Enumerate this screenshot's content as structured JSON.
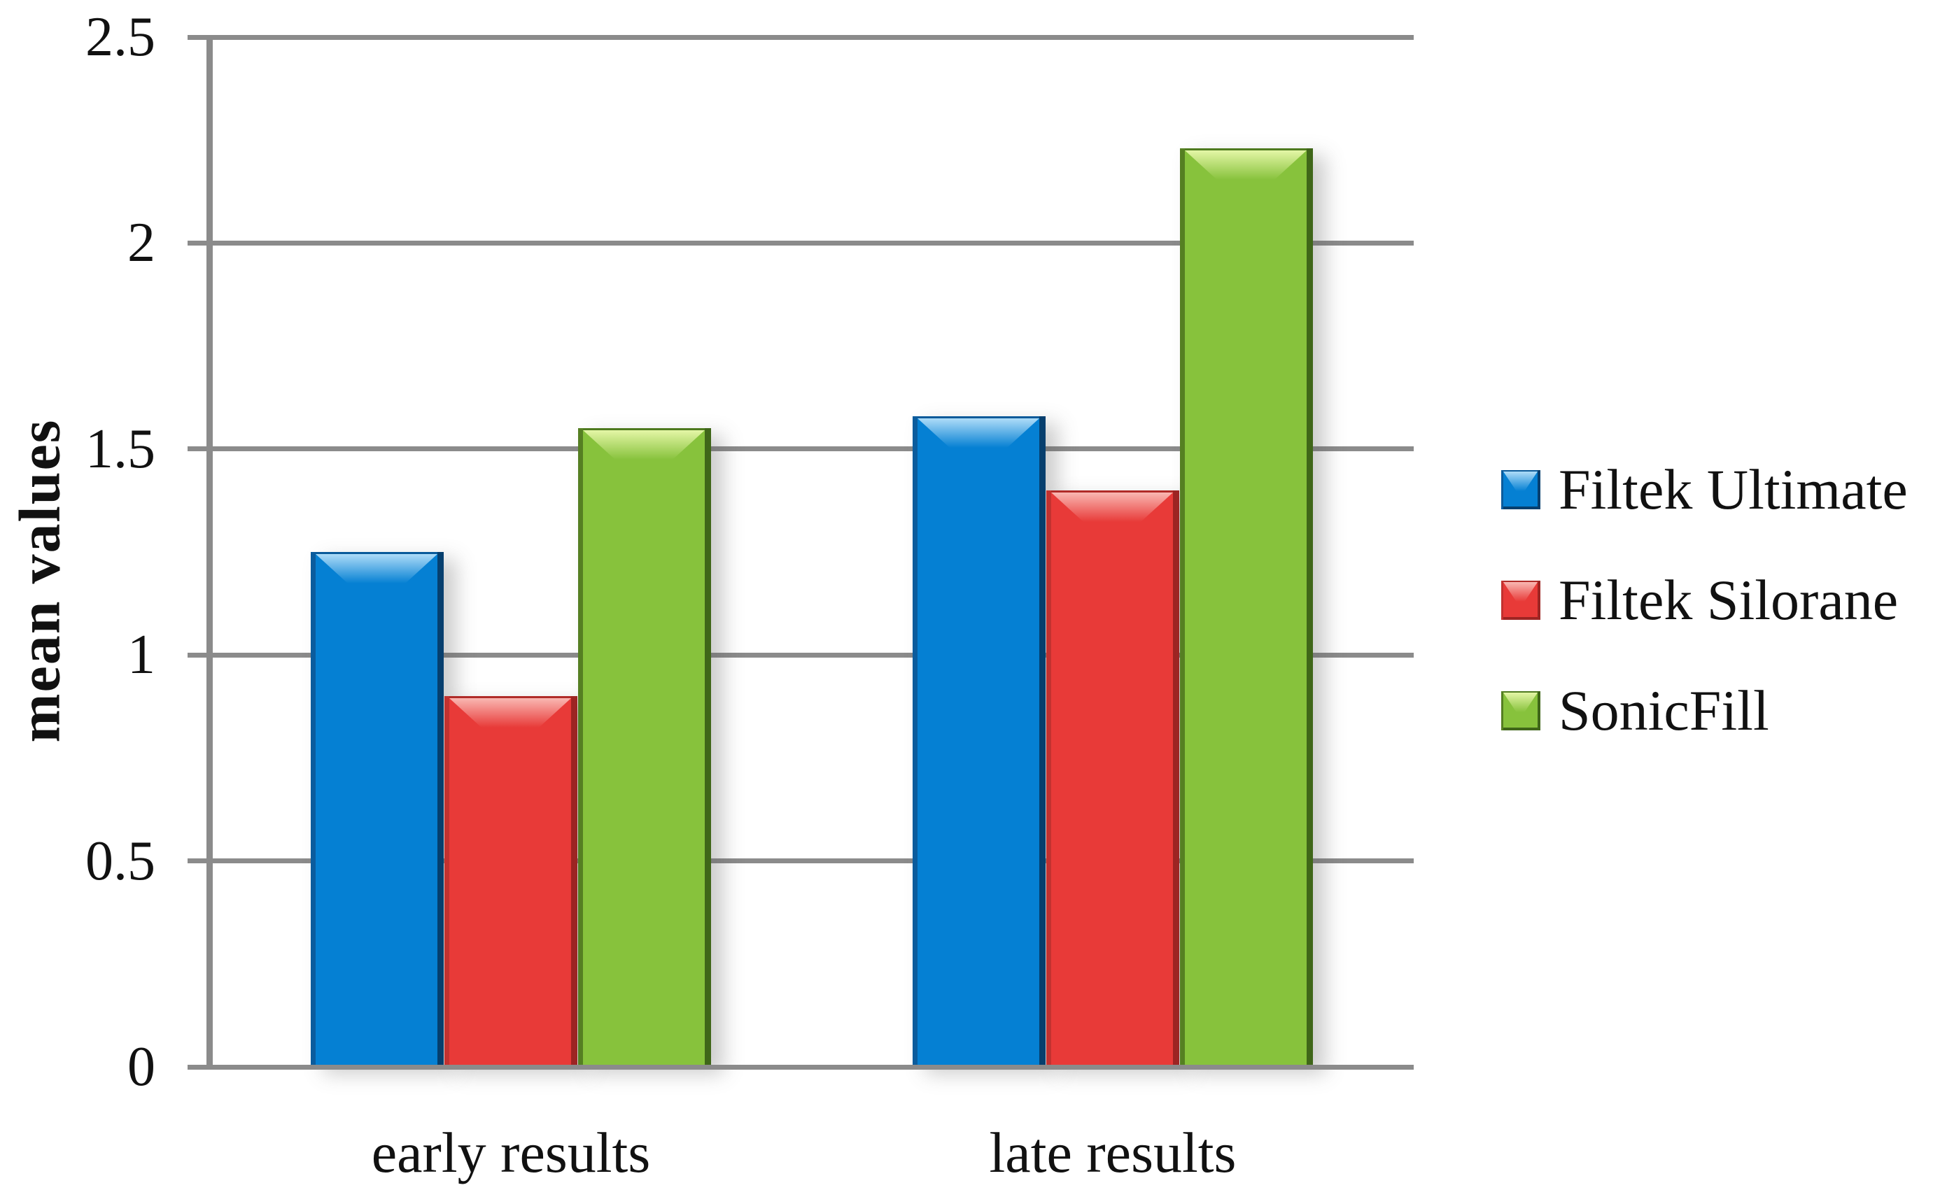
{
  "page": {
    "background": "#ffffff"
  },
  "chart_data": {
    "type": "bar",
    "title": "",
    "xlabel": "",
    "ylabel": "mean values",
    "categories": [
      "early results",
      "late results"
    ],
    "series": [
      {
        "name": "Filtek Ultimate",
        "values": [
          1.25,
          1.58
        ],
        "fill": "#0580d3",
        "edge_left": "#0b5c9d",
        "edge_right": "#063f6e",
        "edge_top": "#0a5a9a",
        "gloss": "#aedcf8"
      },
      {
        "name": "Filtek Silorane",
        "values": [
          0.9,
          1.4
        ],
        "fill": "#e83a38",
        "edge_left": "#c23230",
        "edge_right": "#9e2523",
        "edge_top": "#b02b28",
        "gloss": "#f9b7b2"
      },
      {
        "name": "SonicFill",
        "values": [
          1.55,
          2.23
        ],
        "fill": "#87c23c",
        "edge_left": "#557f22",
        "edge_right": "#3f6619",
        "edge_top": "#4e7a1e",
        "gloss": "#e4f6a6"
      }
    ],
    "ylim": [
      0,
      2.5
    ],
    "yticks": [
      0,
      0.5,
      1,
      1.5,
      2,
      2.5
    ],
    "ytick_labels": [
      "0",
      "0.5",
      "1",
      "1.5",
      "2",
      "2.5"
    ],
    "grid": true,
    "legend_position": "right",
    "axis_color": "#8b8b8b",
    "text_color": "#111111"
  }
}
